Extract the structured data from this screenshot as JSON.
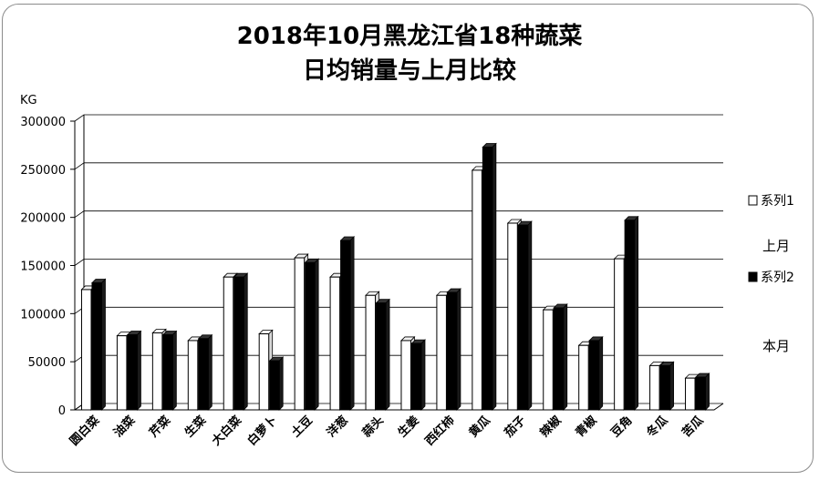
{
  "chart_data": {
    "type": "bar",
    "title_line1": "2018年10月黑龙江省18种蔬菜",
    "title_line2": "日均销量与上月比较",
    "ylabel": "KG",
    "ylim": [
      0,
      300000
    ],
    "yticks": [
      "0",
      "50000",
      "100000",
      "150000",
      "200000",
      "250000",
      "300000"
    ],
    "grid": true,
    "style": "3d-clustered-columns",
    "legend_position": "right",
    "categories": [
      "圆白菜",
      "油菜",
      "芹菜",
      "生菜",
      "大白菜",
      "白萝卜",
      "土豆",
      "洋葱",
      "蒜头",
      "生姜",
      "西红柿",
      "黄瓜",
      "茄子",
      "辣椒",
      "青椒",
      "豆角",
      "冬瓜",
      "苦瓜"
    ],
    "series": [
      {
        "name": "系列1",
        "color": "#ffffff",
        "values": [
          125000,
          77000,
          80000,
          72000,
          138000,
          79000,
          158000,
          138000,
          119000,
          72000,
          119000,
          249000,
          194000,
          104000,
          67000,
          157000,
          46000,
          33000
        ]
      },
      {
        "name": "系列2",
        "color": "#000000",
        "values": [
          132000,
          78000,
          78000,
          74000,
          138000,
          51000,
          153000,
          176000,
          111000,
          69000,
          122000,
          273000,
          192000,
          106000,
          72000,
          197000,
          46000,
          34000
        ]
      }
    ],
    "series_notes": [
      "上月",
      "本月"
    ]
  }
}
